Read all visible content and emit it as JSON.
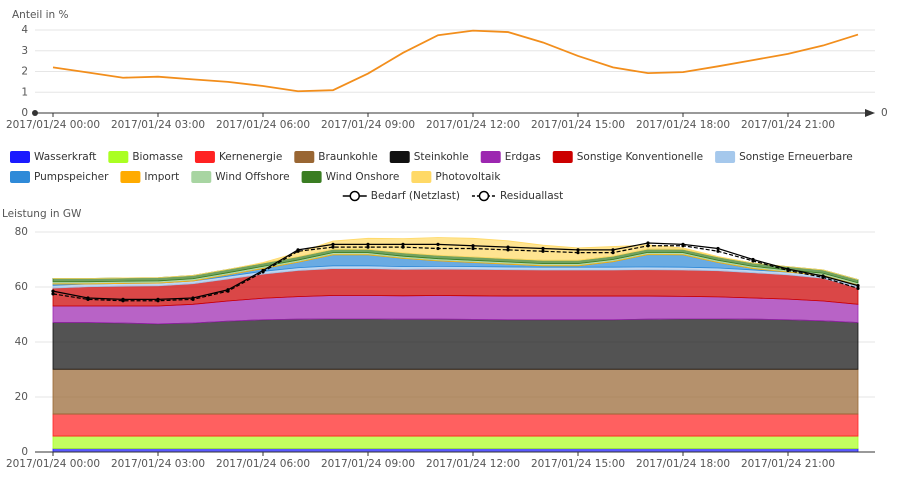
{
  "chart_data": [
    {
      "type": "line",
      "y_label": "Anteil in %",
      "axis_end_label": "0",
      "categories": [
        "2017/01/24 00:00",
        null,
        null,
        "2017/01/24 03:00",
        null,
        null,
        "2017/01/24 06:00",
        null,
        null,
        "2017/01/24 09:00",
        null,
        null,
        "2017/01/24 12:00",
        null,
        null,
        "2017/01/24 15:00",
        null,
        null,
        "2017/01/24 18:00",
        null,
        null,
        "2017/01/24 21:00",
        null,
        null
      ],
      "values": [
        2.2,
        1.95,
        1.7,
        1.75,
        1.62,
        1.5,
        1.3,
        1.05,
        1.1,
        1.9,
        2.9,
        3.75,
        3.97,
        3.9,
        3.4,
        2.75,
        2.2,
        1.92,
        1.97,
        2.25,
        2.55,
        2.85,
        3.25,
        3.78
      ],
      "color": "#f28e1c",
      "ylim": [
        0,
        4
      ],
      "yticks": [
        0,
        1,
        2,
        3,
        4
      ],
      "grid": true
    },
    {
      "type": "stacked_area",
      "y_label": "Leistung in GW",
      "categories": [
        "2017/01/24 00:00",
        null,
        null,
        "2017/01/24 03:00",
        null,
        null,
        "2017/01/24 06:00",
        null,
        null,
        "2017/01/24 09:00",
        null,
        null,
        "2017/01/24 12:00",
        null,
        null,
        "2017/01/24 15:00",
        null,
        null,
        "2017/01/24 18:00",
        null,
        null,
        "2017/01/24 21:00",
        null,
        null
      ],
      "ylim": [
        0,
        80
      ],
      "yticks": [
        0,
        20,
        40,
        60,
        80
      ],
      "grid": true,
      "series": [
        {
          "name": "Wasserkraft",
          "color": "#1a1aff",
          "values": [
            1.3,
            1.3,
            1.3,
            1.3,
            1.3,
            1.3,
            1.3,
            1.3,
            1.3,
            1.3,
            1.3,
            1.3,
            1.3,
            1.3,
            1.3,
            1.3,
            1.3,
            1.3,
            1.3,
            1.3,
            1.3,
            1.3,
            1.3,
            1.3
          ]
        },
        {
          "name": "Biomasse",
          "color": "#aaff22",
          "values": [
            4.5,
            4.5,
            4.5,
            4.5,
            4.5,
            4.5,
            4.5,
            4.5,
            4.5,
            4.5,
            4.5,
            4.5,
            4.5,
            4.5,
            4.5,
            4.5,
            4.5,
            4.5,
            4.5,
            4.5,
            4.5,
            4.5,
            4.5,
            4.5
          ]
        },
        {
          "name": "Kernenergie",
          "color": "#ff2222",
          "values": [
            8,
            8,
            8,
            8,
            8,
            8,
            8,
            8,
            8,
            8,
            8,
            8,
            8,
            8,
            8,
            8,
            8,
            8,
            8,
            8,
            8,
            8,
            8,
            8
          ]
        },
        {
          "name": "Braunkohle",
          "color": "#996633",
          "values": [
            16.3,
            16.3,
            16.3,
            16.3,
            16.3,
            16.3,
            16.3,
            16.3,
            16.3,
            16.3,
            16.3,
            16.3,
            16.3,
            16.3,
            16.3,
            16.3,
            16.3,
            16.3,
            16.3,
            16.3,
            16.3,
            16.3,
            16.3,
            16.3
          ]
        },
        {
          "name": "Steinkohle",
          "color": "#111111",
          "values": [
            17,
            17,
            16.8,
            16.5,
            16.8,
            17.5,
            18,
            18.2,
            18.3,
            18.3,
            18.2,
            18.2,
            18.1,
            18,
            18,
            18,
            18,
            18.2,
            18.3,
            18.3,
            18.2,
            18,
            17.6,
            17
          ]
        },
        {
          "name": "Erdgas",
          "color": "#9c27b0",
          "values": [
            6,
            6,
            6.2,
            6.5,
            6.8,
            7.3,
            7.8,
            8.2,
            8.5,
            8.5,
            8.5,
            8.6,
            8.6,
            8.6,
            8.6,
            8.6,
            8.6,
            8.4,
            8.2,
            8,
            7.7,
            7.5,
            7.2,
            6.6
          ]
        },
        {
          "name": "Sonstige Konventionelle",
          "color": "#cc0000",
          "values": [
            6.5,
            7,
            7.2,
            7.3,
            7.5,
            8,
            8.8,
            9.5,
            9.8,
            9.8,
            9.6,
            9.6,
            9.6,
            9.6,
            9.5,
            9.5,
            9.5,
            9.6,
            9.6,
            9.5,
            9.2,
            8.8,
            8.3,
            6
          ]
        },
        {
          "name": "Sonstige Erneuerbare",
          "color": "#a5c8ec",
          "values": [
            1,
            1,
            1,
            1,
            1,
            1,
            1,
            1,
            1,
            1,
            1,
            1,
            1,
            1,
            1,
            1,
            1,
            1,
            1,
            1,
            1,
            1,
            1,
            1
          ]
        },
        {
          "name": "Pumpspeicher",
          "color": "#2f8ad8",
          "values": [
            0.5,
            0,
            0,
            0,
            0,
            0.5,
            1,
            2,
            4,
            4,
            3,
            2,
            1.5,
            1,
            0.5,
            0.5,
            2,
            4.5,
            4.5,
            2,
            0.5,
            0,
            0,
            0
          ]
        },
        {
          "name": "Import",
          "color": "#ffab00",
          "values": [
            0.3,
            0.3,
            0.3,
            0.3,
            0.3,
            0.3,
            0.3,
            0.3,
            0.3,
            0.3,
            0.3,
            0.3,
            0.3,
            0.3,
            0.3,
            0.3,
            0.3,
            0.3,
            0.3,
            0.3,
            0.3,
            0.3,
            0.3,
            0.3
          ]
        },
        {
          "name": "Wind Offshore",
          "color": "#a8d5a2",
          "values": [
            0.5,
            0.5,
            0.5,
            0.5,
            0.5,
            0.5,
            0.5,
            0.5,
            0.5,
            0.5,
            0.5,
            0.5,
            0.5,
            0.5,
            0.5,
            0.5,
            0.5,
            0.5,
            0.5,
            0.5,
            0.5,
            0.5,
            0.5,
            0.5
          ]
        },
        {
          "name": "Wind Onshore",
          "color": "#3a7d22",
          "values": [
            1.2,
            1.2,
            1.2,
            1.2,
            1.2,
            1.2,
            1.2,
            1.2,
            1.2,
            1.2,
            1.2,
            1.2,
            1.2,
            1.2,
            1.2,
            1.2,
            1.2,
            1.2,
            1.2,
            1.2,
            1.2,
            1.2,
            1.2,
            1.2
          ]
        },
        {
          "name": "Photovoltaik",
          "color": "#ffd966",
          "values": [
            0,
            0,
            0,
            0,
            0,
            0,
            0.2,
            1.5,
            3,
            4,
            5.2,
            6.5,
            6.8,
            6.5,
            5.5,
            4.5,
            3.5,
            1.5,
            0.5,
            0.2,
            0,
            0,
            0,
            0
          ]
        }
      ],
      "lines": [
        {
          "name": "Bedarf (Netzlast)",
          "color": "#000000",
          "values": [
            58.5,
            56,
            55.5,
            55.5,
            56,
            59,
            66,
            73.5,
            75.5,
            75.5,
            75.5,
            75.5,
            75,
            74.5,
            74,
            73.5,
            73.5,
            76,
            75.5,
            74,
            70,
            66.5,
            64,
            60.5
          ]
        },
        {
          "name": "Residuallast",
          "color": "#000000",
          "dashed": true,
          "values": [
            57.5,
            55.5,
            55,
            55,
            55.5,
            58.5,
            65.5,
            73,
            74.5,
            74.5,
            74.5,
            74,
            74,
            73.5,
            73,
            72.5,
            72.5,
            75,
            75,
            73,
            69.5,
            66,
            63.5,
            59.5
          ]
        }
      ]
    }
  ]
}
